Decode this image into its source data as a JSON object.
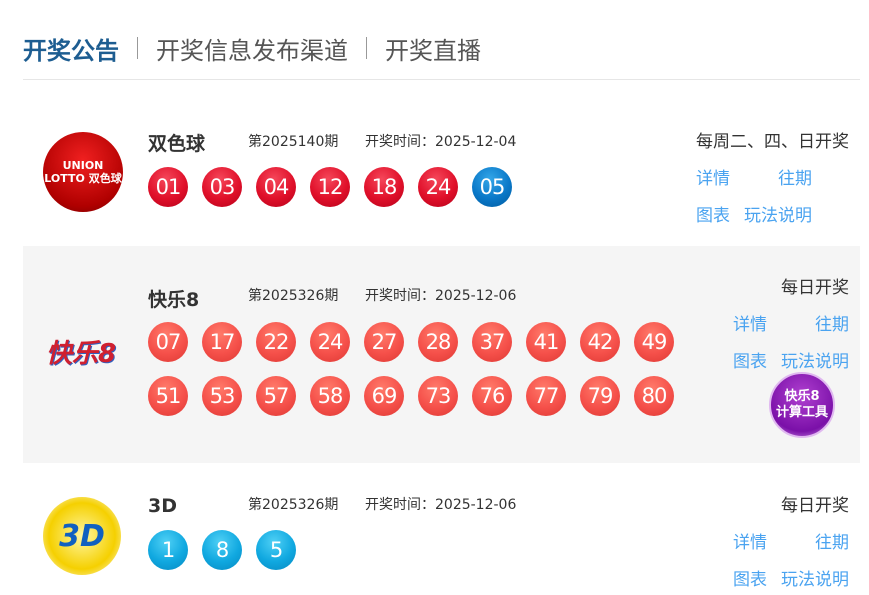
{
  "tabs": [
    "开奖公告",
    "开奖信息发布渠道",
    "开奖直播"
  ],
  "colors": {
    "accent": "#1d5d91",
    "link": "#4aa3f0",
    "red_ball": "#e0102a",
    "blue_ball": "#0a78c8",
    "kl8_ball": "#f5504a",
    "d3_ball": "#10a8e0"
  },
  "links": {
    "detail": "详情",
    "history": "往期",
    "chart": "图表",
    "rules": "玩法说明"
  },
  "lotteries": [
    {
      "name": "双色球",
      "issue": "第2025140期",
      "time": "开奖时间：2025-12-04",
      "schedule": "每周二、四、日开奖",
      "logo": "UNION LOTTO 双色球",
      "red": [
        "01",
        "03",
        "04",
        "12",
        "18",
        "24"
      ],
      "blue": [
        "05"
      ]
    },
    {
      "name": "快乐8",
      "issue": "第2025326期",
      "time": "开奖时间：2025-12-06",
      "schedule": "每日开奖",
      "logo": "快乐8",
      "row1": [
        "07",
        "17",
        "22",
        "24",
        "27",
        "28",
        "37",
        "41",
        "42",
        "49"
      ],
      "row2": [
        "51",
        "53",
        "57",
        "58",
        "69",
        "73",
        "76",
        "77",
        "79",
        "80"
      ],
      "tool_line1": "快乐8",
      "tool_line2": "计算工具"
    },
    {
      "name": "3D",
      "issue": "第2025326期",
      "time": "开奖时间：2025-12-06",
      "schedule": "每日开奖",
      "logo": "3D",
      "balls": [
        "1",
        "8",
        "5"
      ]
    }
  ]
}
